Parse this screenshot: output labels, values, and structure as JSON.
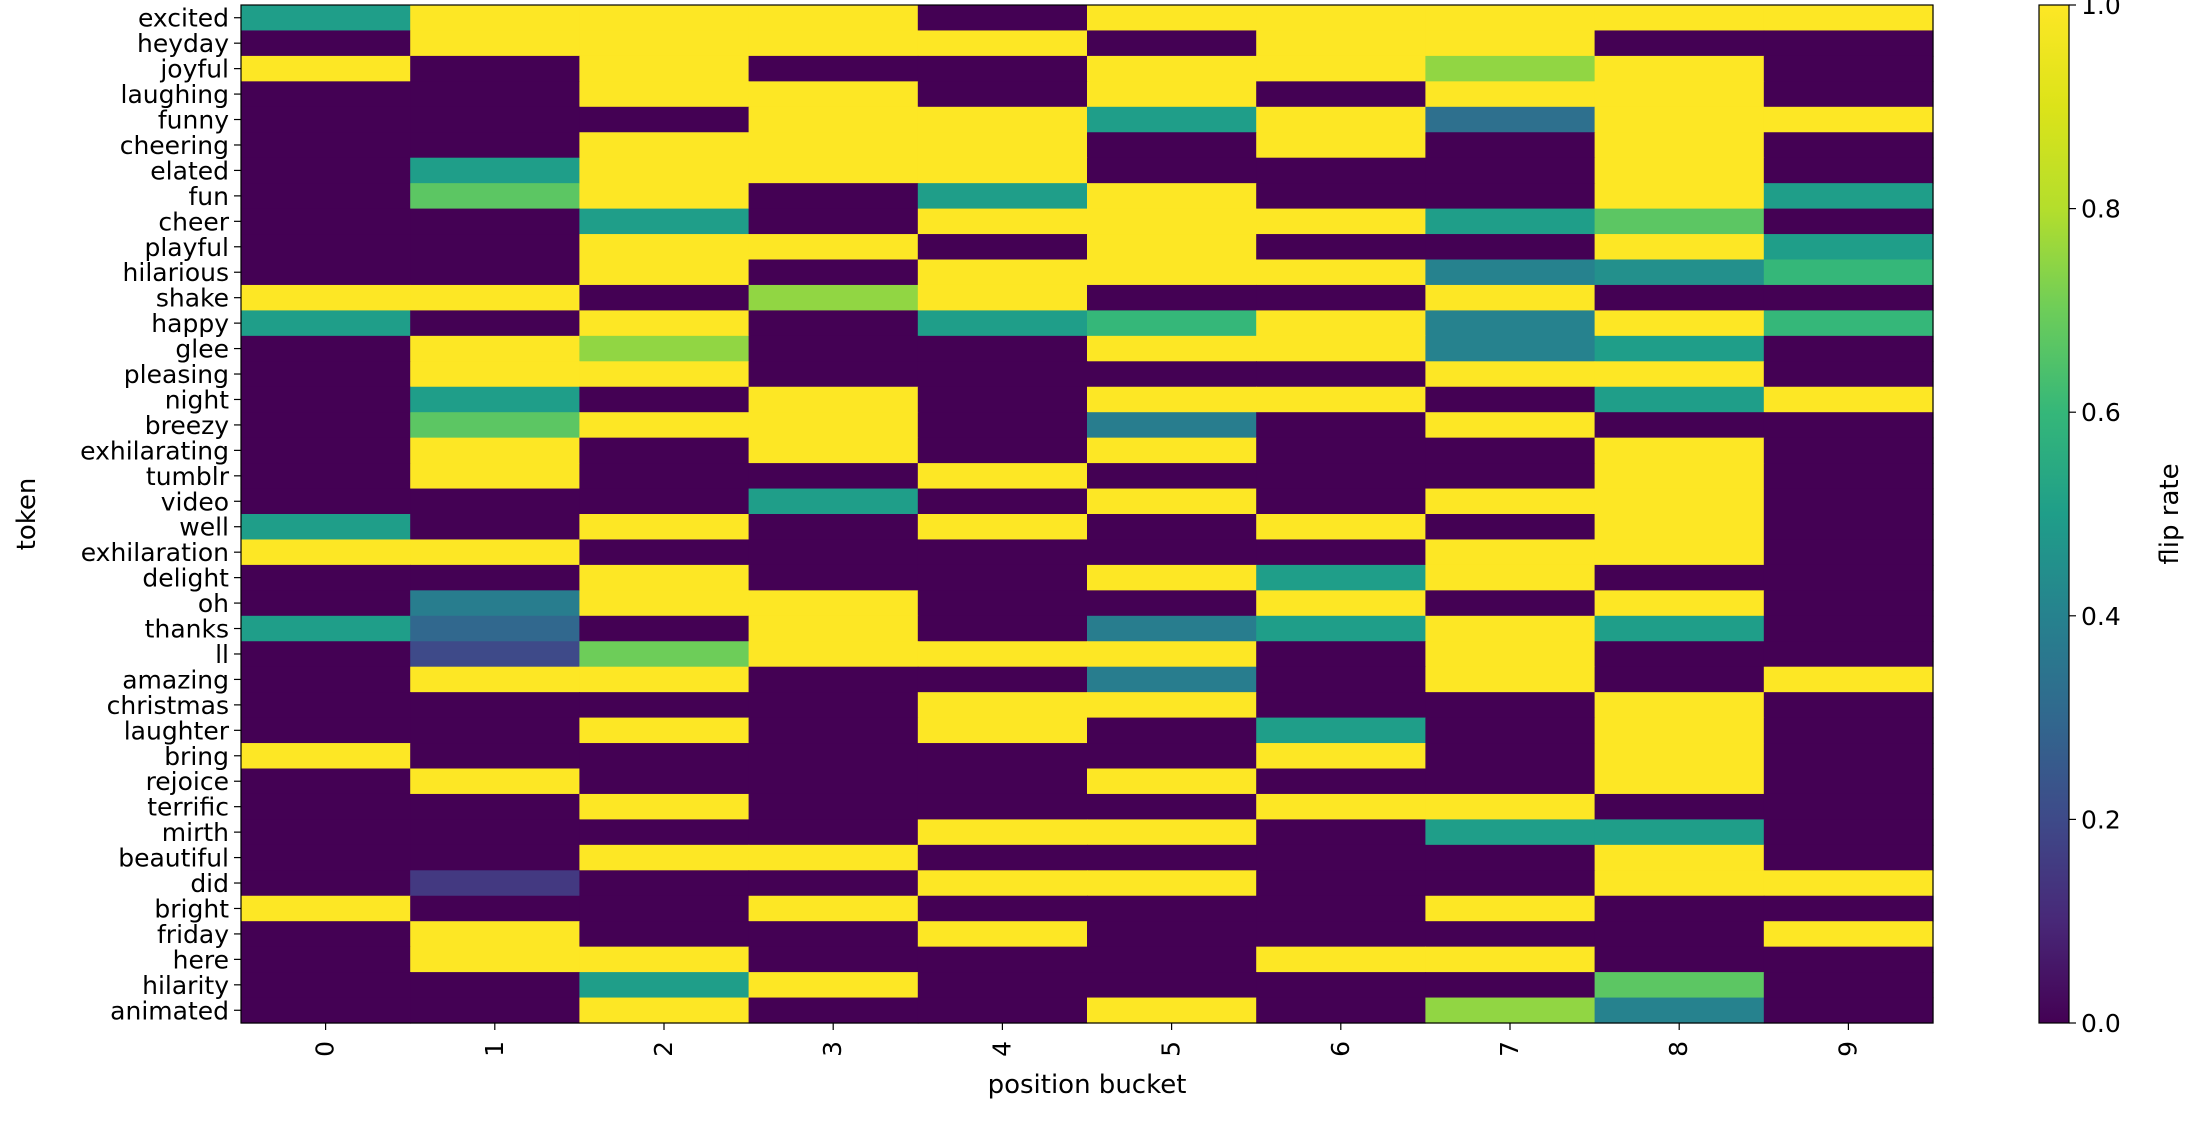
{
  "chart_data": {
    "type": "heatmap",
    "title": "",
    "xlabel": "position bucket",
    "ylabel": "token",
    "colorbar_label": "flip rate",
    "colormap": "viridis",
    "vmin": 0.0,
    "vmax": 1.0,
    "colorbar_ticks": [
      0.0,
      0.2,
      0.4,
      0.6,
      0.8,
      1.0
    ],
    "colorbar_tick_labels": [
      "0.0",
      "0.2",
      "0.4",
      "0.6",
      "0.8",
      "1.0"
    ],
    "x_ticks": [
      "0",
      "1",
      "2",
      "3",
      "4",
      "5",
      "6",
      "7",
      "8",
      "9"
    ],
    "y_ticks": [
      "excited",
      "heyday",
      "joyful",
      "laughing",
      "funny",
      "cheering",
      "elated",
      "fun",
      "cheer",
      "playful",
      "hilarious",
      "shake",
      "happy",
      "glee",
      "pleasing",
      "night",
      "breezy",
      "exhilarating",
      "tumblr",
      "video",
      "well",
      "exhilaration",
      "delight",
      "oh",
      "thanks",
      "ll",
      "amazing",
      "christmas",
      "laughter",
      "bring",
      "rejoice",
      "terrific",
      "mirth",
      "beautiful",
      "did",
      "bright",
      "friday",
      "here",
      "hilarity",
      "animated"
    ],
    "values": [
      [
        0.5,
        1,
        1,
        1,
        0,
        1,
        1,
        1,
        1,
        1
      ],
      [
        0,
        1,
        1,
        1,
        1,
        0,
        1,
        1,
        0,
        0
      ],
      [
        1,
        0,
        1,
        0,
        0,
        1,
        1,
        0.75,
        1,
        0
      ],
      [
        0,
        0,
        1,
        1,
        0,
        1,
        0,
        1,
        1,
        0
      ],
      [
        0,
        0,
        0,
        1,
        1,
        0.5,
        1,
        0.33,
        1,
        1
      ],
      [
        0,
        0,
        1,
        1,
        1,
        0,
        1,
        0,
        1,
        0
      ],
      [
        0,
        0.5,
        1,
        1,
        1,
        0,
        0,
        0,
        1,
        0
      ],
      [
        0,
        0.67,
        1,
        0,
        0.5,
        1,
        0,
        0,
        1,
        0.5
      ],
      [
        0,
        0,
        0.5,
        0,
        1,
        1,
        1,
        0.5,
        0.67,
        0
      ],
      [
        0,
        0,
        1,
        1,
        0,
        1,
        0,
        0,
        1,
        0.5
      ],
      [
        0,
        0,
        1,
        0,
        1,
        1,
        1,
        0.4,
        0.45,
        0.6
      ],
      [
        1,
        1,
        0,
        0.75,
        1,
        0,
        0,
        1,
        0,
        0
      ],
      [
        0.5,
        0,
        1,
        0,
        0.5,
        0.6,
        1,
        0.4,
        1,
        0.6
      ],
      [
        0,
        1,
        0.75,
        0,
        0,
        1,
        1,
        0.4,
        0.5,
        0
      ],
      [
        0,
        1,
        1,
        0,
        0,
        0,
        0,
        1,
        1,
        0
      ],
      [
        0,
        0.5,
        0,
        1,
        0,
        1,
        1,
        0,
        0.5,
        1
      ],
      [
        0,
        0.67,
        1,
        1,
        0,
        0.38,
        0,
        1,
        0,
        0
      ],
      [
        0,
        1,
        0,
        1,
        0,
        1,
        0,
        0,
        1,
        0
      ],
      [
        0,
        1,
        0,
        0,
        1,
        0,
        0,
        0,
        1,
        0
      ],
      [
        0,
        0,
        0,
        0.5,
        0,
        1,
        0,
        1,
        1,
        0
      ],
      [
        0.5,
        0,
        1,
        0,
        1,
        0,
        1,
        0,
        1,
        0
      ],
      [
        1,
        1,
        0,
        0,
        0,
        0,
        0,
        1,
        1,
        0
      ],
      [
        0,
        0,
        1,
        0,
        0,
        1,
        0.5,
        1,
        0,
        0
      ],
      [
        0,
        0.38,
        1,
        1,
        0,
        0,
        1,
        0,
        1,
        0
      ],
      [
        0.5,
        0.3,
        0,
        1,
        0,
        0.38,
        0.5,
        1,
        0.5,
        0
      ],
      [
        0,
        0.2,
        0.7,
        1,
        1,
        1,
        0,
        1,
        0,
        0
      ],
      [
        0,
        1,
        1,
        0,
        0,
        0.38,
        0,
        1,
        0,
        1
      ],
      [
        0,
        0,
        0,
        0,
        1,
        1,
        0,
        0,
        1,
        0
      ],
      [
        0,
        0,
        1,
        0,
        1,
        0,
        0.5,
        0,
        1,
        0
      ],
      [
        1,
        0,
        0,
        0,
        0,
        0,
        1,
        0,
        1,
        0
      ],
      [
        0,
        1,
        0,
        0,
        0,
        1,
        0,
        0,
        1,
        0
      ],
      [
        0,
        0,
        1,
        0,
        0,
        0,
        1,
        1,
        0,
        0
      ],
      [
        0,
        0,
        0,
        0,
        1,
        1,
        0,
        0.5,
        0.5,
        0
      ],
      [
        0,
        0,
        1,
        1,
        0,
        0,
        0,
        0,
        1,
        0
      ],
      [
        0,
        0.15,
        0,
        0,
        1,
        1,
        0,
        0,
        1,
        1
      ],
      [
        1,
        0,
        0,
        1,
        0,
        0,
        0,
        1,
        0,
        0
      ],
      [
        0,
        1,
        0,
        0,
        1,
        0,
        0,
        0,
        0,
        1
      ],
      [
        0,
        1,
        1,
        0,
        0,
        0,
        1,
        1,
        0,
        0
      ],
      [
        0,
        0,
        0.5,
        1,
        0,
        0,
        0,
        0,
        0.67,
        0
      ],
      [
        0,
        0,
        1,
        0,
        0,
        1,
        0,
        0.75,
        0.4,
        0
      ]
    ]
  }
}
